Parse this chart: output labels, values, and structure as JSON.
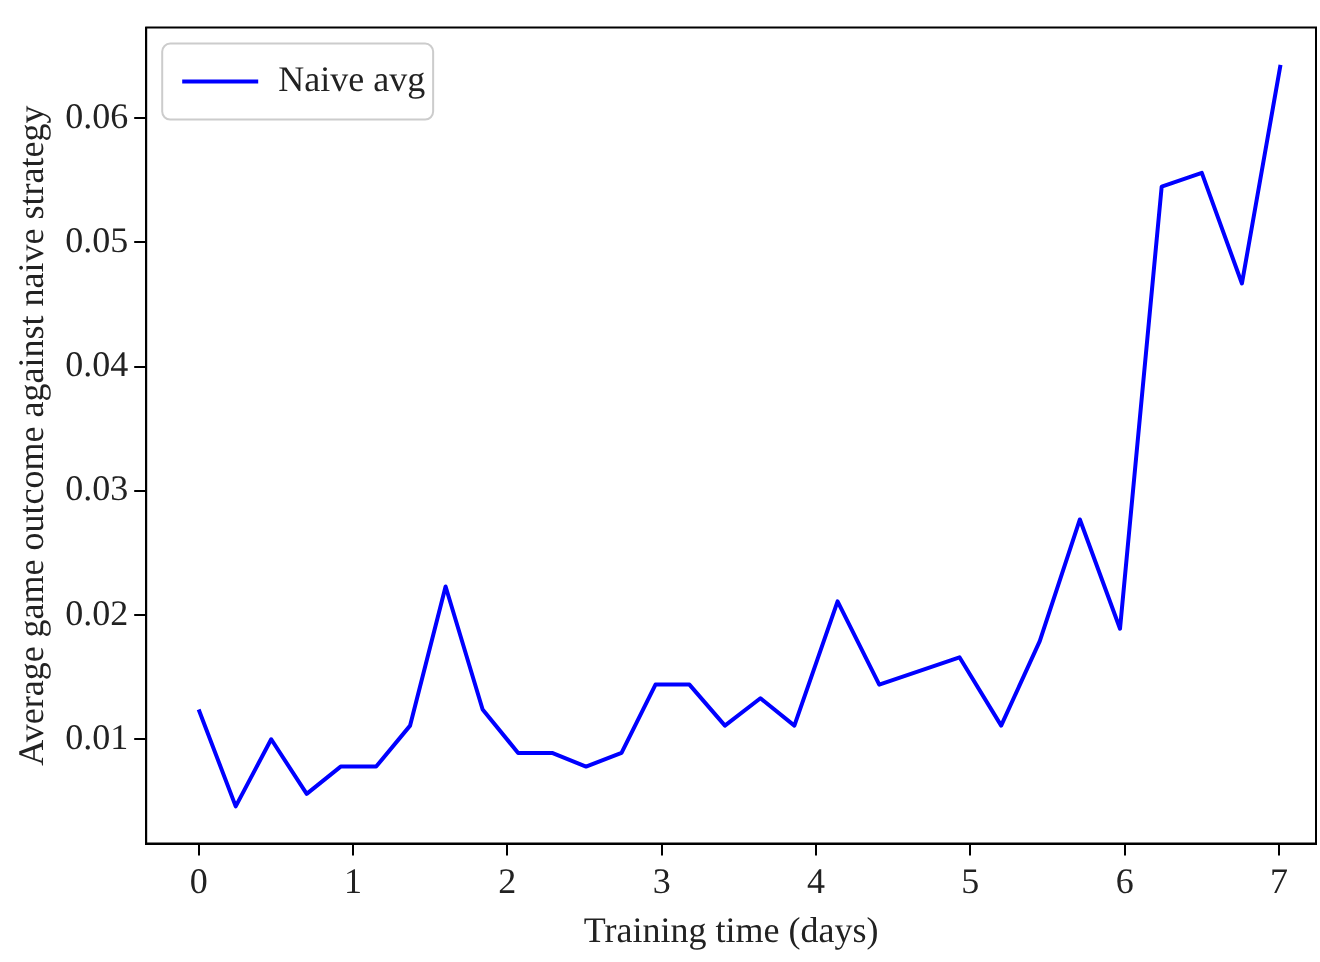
{
  "chart_data": {
    "type": "line",
    "xlabel": "Training time (days)",
    "ylabel": "Average game outcome against naive strategy",
    "x": [
      0,
      0.24,
      0.47,
      0.7,
      0.92,
      1.15,
      1.37,
      1.6,
      1.84,
      2.07,
      2.29,
      2.51,
      2.74,
      2.96,
      3.18,
      3.41,
      3.64,
      3.86,
      4.14,
      4.41,
      4.93,
      5.2,
      5.45,
      5.71,
      5.97,
      6.24,
      6.5,
      6.76,
      7.01
    ],
    "series": [
      {
        "name": "Naive avg",
        "color": "#0000ff",
        "values": [
          0.0124,
          0.0046,
          0.01,
          0.0056,
          0.0078,
          0.0078,
          0.0111,
          0.0223,
          0.0124,
          0.0089,
          0.0089,
          0.0078,
          0.0089,
          0.0144,
          0.0144,
          0.0111,
          0.0133,
          0.0111,
          0.0211,
          0.0144,
          0.0166,
          0.0111,
          0.0179,
          0.0277,
          0.0189,
          0.0545,
          0.0556,
          0.0467,
          0.0643
        ]
      }
    ],
    "xlim": [
      -0.34,
      7.24
    ],
    "xticks": [
      0,
      1,
      2,
      3,
      4,
      5,
      6,
      7
    ],
    "ylim": [
      0.0016,
      0.0673
    ],
    "yticks": [
      0.01,
      0.02,
      0.03,
      0.04,
      0.05,
      0.06
    ],
    "grid": false,
    "legend": "top left",
    "marker": "none",
    "line_style": "solid"
  }
}
